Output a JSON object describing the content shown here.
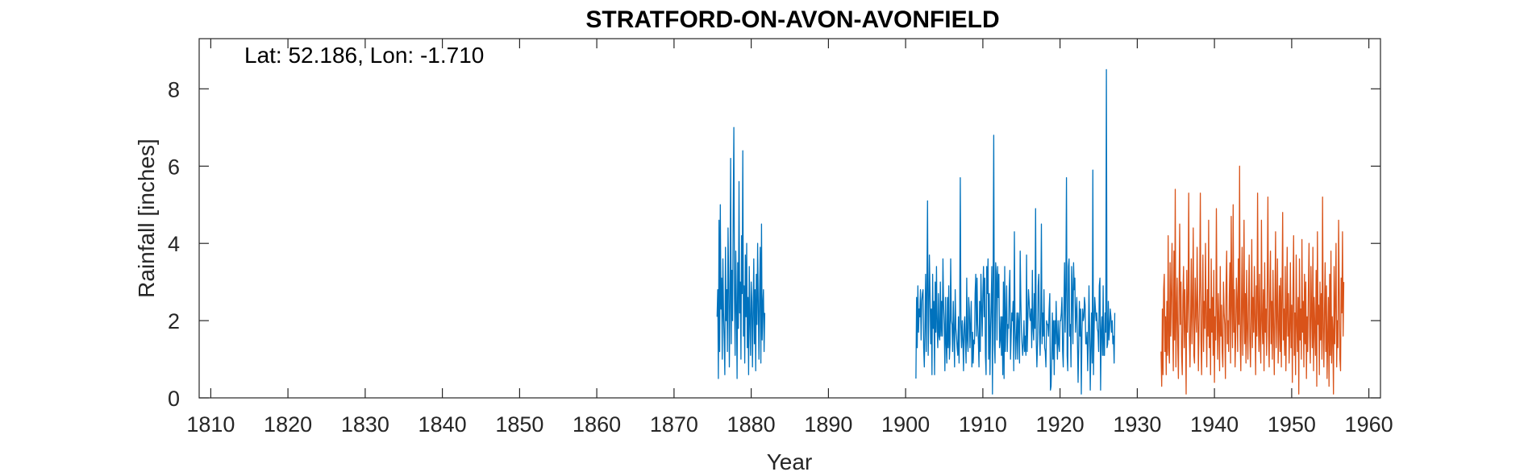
{
  "chart_data": {
    "type": "line",
    "title": "STRATFORD-ON-AVON-AVONFIELD",
    "annotation": "Lat: 52.186, Lon: -1.710",
    "xlabel": "Year",
    "ylabel": "Rainfall [inches]",
    "xlim": [
      1808.5,
      1961.5
    ],
    "ylim": [
      0,
      9.3
    ],
    "x_ticks": [
      1810,
      1820,
      1830,
      1840,
      1850,
      1860,
      1870,
      1880,
      1890,
      1900,
      1910,
      1920,
      1930,
      1940,
      1950,
      1960
    ],
    "y_ticks": [
      0,
      2,
      4,
      6,
      8
    ],
    "grid": false,
    "series": [
      {
        "color": "#0072BD",
        "segments": [
          {
            "start": 1875.583,
            "step": 0.0833333,
            "values": [
              2.1,
              2.8,
              0.5,
              4.6,
              1.2,
              5.0,
              2.3,
              3.1,
              1.0,
              3.6,
              2.2,
              1.5,
              0.6,
              3.9,
              2.0,
              2.8,
              1.2,
              4.4,
              3.0,
              0.8,
              2.5,
              6.2,
              1.4,
              3.3,
              2.0,
              4.8,
              7.0,
              2.6,
              1.1,
              3.8,
              2.4,
              0.5,
              3.5,
              1.8,
              5.6,
              2.2,
              3.0,
              1.0,
              4.2,
              2.7,
              6.4,
              1.6,
              2.9,
              0.9,
              3.7,
              2.1,
              4.0,
              1.3,
              2.6,
              0.6,
              3.4,
              2.0,
              1.1,
              3.0,
              2.5,
              0.8,
              2.2,
              3.6,
              1.4,
              2.8,
              0.7,
              3.2,
              1.9,
              4.0,
              2.4,
              1.0,
              2.7,
              3.9,
              0.9,
              4.5,
              1.5,
              2.4,
              2.8,
              1.2,
              2.2
            ]
          },
          {
            "start": 1901.333,
            "step": 0.0833333,
            "values": [
              0.5,
              2.6,
              1.3,
              2.9,
              1.7,
              2.3,
              2.1,
              2.8,
              1.5,
              2.5,
              2.7,
              2.8,
              1.3,
              0.8,
              1.8,
              3.2,
              1.2,
              2.9,
              5.1,
              1.1,
              2.0,
              3.7,
              2.7,
              1.4,
              2.3,
              0.6,
              3.2,
              1.8,
              2.5,
              0.6,
              3.0,
              1.7,
              3.4,
              1.8,
              1.3,
              2.7,
              1.6,
              1.5,
              3.0,
              1.6,
              2.5,
              1.6,
              3.6,
              2.4,
              1.9,
              0.7,
              2.6,
              1.4,
              0.9,
              2.6,
              1.3,
              2.9,
              1.0,
              1.4,
              3.6,
              2.0,
              1.9,
              1.2,
              2.5,
              1.7,
              0.8,
              2.8,
              1.8,
              1.6,
              1.3,
              1.1,
              2.1,
              0.9,
              2.3,
              5.7,
              1.9,
              1.3,
              2.0,
              1.5,
              0.7,
              1.9,
              2.1,
              1.4,
              0.9,
              3.1,
              1.5,
              1.2,
              2.6,
              2.3,
              1.3,
              1.9,
              2.5,
              0.8,
              1.7,
              0.9,
              1.5,
              1.4,
              2.7,
              3.2,
              1.6,
              3.1,
              1.9,
              1.5,
              0.8,
              2.5,
              1.2,
              3.2,
              2.4,
              1.6,
              2.7,
              3.4,
              2.1,
              3.1,
              1.1,
              0.6,
              3.4,
              2.7,
              3.6,
              1.0,
              2.7,
              0.6,
              1.8,
              2.4,
              3.4,
              0.1,
              3.1,
              6.8,
              1.4,
              0.9,
              3.5,
              3.2,
              1.5,
              3.4,
              2.6,
              3.2,
              1.3,
              1.5,
              2.1,
              1.1,
              2.1,
              0.6,
              3.0,
              0.5,
              3.4,
              1.2,
              2.1,
              2.9,
              1.2,
              1.9,
              1.8,
              2.8,
              3.3,
              1.0,
              1.6,
              2.2,
              2.0,
              2.5,
              0.7,
              4.3,
              1.8,
              1.0,
              1.6,
              2.2,
              1.0,
              2.2,
              1.9,
              0.9,
              3.8,
              2.5,
              1.7,
              1.4,
              1.1,
              1.4,
              2.0,
              1.2,
              1.6,
              1.1,
              3.7,
              1.2,
              2.0,
              2.8,
              2.5,
              2.1,
              2.0,
              2.3,
              1.3,
              3.3,
              1.8,
              1.5,
              2.7,
              1.8,
              4.9,
              1.5,
              0.8,
              1.4,
              2.9,
              3.2,
              1.7,
              1.1,
              2.1,
              4.5,
              1.4,
              2.2,
              1.6,
              2.8,
              1.3,
              1.2,
              0.8,
              2.0,
              1.9,
              1.9,
              1.6,
              2.3,
              2.7,
              0.2,
              0.3,
              1.1,
              2.2,
              1.0,
              2.0,
              0.6,
              2.0,
              1.4,
              2.5,
              1.6,
              1.0,
              2.0,
              1.4,
              1.2,
              2.0,
              2.0,
              2.2,
              2.6,
              1.2,
              0.8,
              2.3,
              3.5,
              1.7,
              2.8,
              5.7,
              1.1,
              0.7,
              3.4,
              3.6,
              1.6,
              1.9,
              0.8,
              3.4,
              2.8,
              1.4,
              3.5,
              2.8,
              3.1,
              1.7,
              2.2,
              2.6,
              1.5,
              0.4,
              1.3,
              2.5,
              1.6,
              2.3,
              0.1,
              1.7,
              2.3,
              2.0,
              2.1,
              2.6,
              2.4,
              1.4,
              1.4,
              1.7,
              0.7,
              1.5,
              2.9,
              1.7,
              0.2,
              1.3,
              2.2,
              0.9,
              5.9,
              0.6,
              1.8,
              2.6,
              2.3,
              2.0,
              2.2,
              1.8,
              1.7,
              1.2,
              2.9,
              3.1,
              0.2,
              1.7,
              2.1,
              1.1,
              2.9,
              1.1,
              1.1,
              2.2,
              1.7,
              8.5,
              1.3,
              1.4,
              2.5,
              1.5,
              1.8,
              2.3,
              2.1,
              1.7,
              2.0,
              1.4,
              1.6,
              0.9,
              2.2
            ]
          }
        ]
      },
      {
        "color": "#D95319",
        "segments": [
          {
            "start": 1933.083,
            "step": 0.0833333,
            "values": [
              1.2,
              0.3,
              2.3,
              0.6,
              2.8,
              3.2,
              1.2,
              2.1,
              0.6,
              2.5,
              1.1,
              4.2,
              1.3,
              0.9,
              3.5,
              1.6,
              2.7,
              4.0,
              1.8,
              0.7,
              3.8,
              1.5,
              5.4,
              0.8,
              2.2,
              3.1,
              1.4,
              0.5,
              2.7,
              4.5,
              1.9,
              3.0,
              1.1,
              0.6,
              2.6,
              3.4,
              1.3,
              2.8,
              1.8,
              0.1,
              3.3,
              1.7,
              2.5,
              5.3,
              1.6,
              0.8,
              2.0,
              3.6,
              1.4,
              2.4,
              4.4,
              1.1,
              0.9,
              3.1,
              2.2,
              1.7,
              3.9,
              2.3,
              0.7,
              1.9,
              2.9,
              5.3,
              1.5,
              0.6,
              2.3,
              3.7,
              1.2,
              2.5,
              1.8,
              4.0,
              2.1,
              0.8,
              2.8,
              1.6,
              4.6,
              1.3,
              2.3,
              0.6,
              3.6,
              1.7,
              2.6,
              1.1,
              3.3,
              0.4,
              2.1,
              1.5,
              4.9,
              2.3,
              1.0,
              2.7,
              1.8,
              0.7,
              3.4,
              1.6,
              2.4,
              1.2,
              0.8,
              3.0,
              2.2,
              1.9,
              0.5,
              2.9,
              3.8,
              1.4,
              2.0,
              1.2,
              2.6,
              3.5,
              0.9,
              4.7,
              2.4,
              1.3,
              5.0,
              1.7,
              2.8,
              0.8,
              1.6,
              3.1,
              2.5,
              1.2,
              3.6,
              1.9,
              6.0,
              1.5,
              0.7,
              2.4,
              3.9,
              1.1,
              2.2,
              4.6,
              1.4,
              2.7,
              0.9,
              3.3,
              1.8,
              1.0,
              2.5,
              3.7,
              1.5,
              0.8,
              2.1,
              4.1,
              1.3,
              2.6,
              1.7,
              3.4,
              2.0,
              0.6,
              2.9,
              1.6,
              5.3,
              2.2,
              1.2,
              3.2,
              1.5,
              0.9,
              4.6,
              2.0,
              1.4,
              2.8,
              0.7,
              3.5,
              1.7,
              2.3,
              1.1,
              3.0,
              5.2,
              1.6,
              0.8,
              2.7,
              3.8,
              1.4,
              2.5,
              1.0,
              3.3,
              1.9,
              0.6,
              2.4,
              4.3,
              1.3,
              2.2,
              3.6,
              0.9,
              1.7,
              2.9,
              1.2,
              3.1,
              0.8,
              2.6,
              4.8,
              1.5,
              2.3,
              1.1,
              3.4,
              0.7,
              2.0,
              3.9,
              1.6,
              2.7,
              0.9,
              1.8,
              3.5,
              1.3,
              2.4,
              0.4,
              2.8,
              4.2,
              1.1,
              2.2,
              0.6,
              3.7,
              1.9,
              1.2,
              2.6,
              0.1,
              3.6,
              1.5,
              2.3,
              1.0,
              4.1,
              1.7,
              2.5,
              0.8,
              3.2,
              1.4,
              3.0,
              0.5,
              2.1,
              1.2,
              2.8,
              4.0,
              1.6,
              0.9,
              3.4,
              2.2,
              1.3,
              3.9,
              0.7,
              2.6,
              1.8,
              1.1,
              3.3,
              0.3,
              4.3,
              1.9,
              2.4,
              0.6,
              3.0,
              1.5,
              2.7,
              1.0,
              5.2,
              1.8,
              0.8,
              2.3,
              3.5,
              1.2,
              2.9,
              0.5,
              1.6,
              2.6,
              0.3,
              3.2,
              1.1,
              3.8,
              0.9,
              2.1,
              1.7,
              0.1,
              3.4,
              1.4,
              2.5,
              4.0,
              0.8,
              2.0,
              1.3,
              4.6,
              2.8,
              1.0,
              0.7,
              3.1,
              2.2,
              4.3,
              1.6,
              3.0
            ]
          }
        ]
      }
    ]
  }
}
